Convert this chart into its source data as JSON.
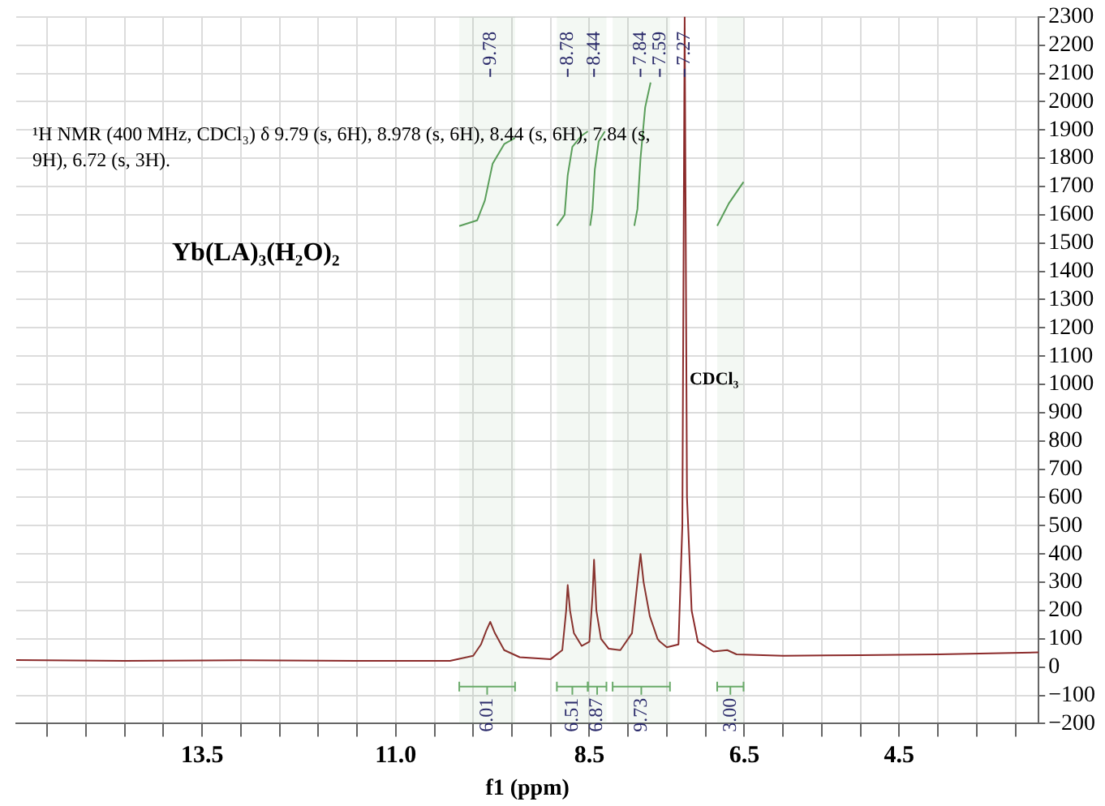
{
  "chart_data": {
    "type": "line",
    "xlabel": "f1 (ppm)",
    "xlim": [
      15.9,
      2.7
    ],
    "ylim": [
      -200,
      2300
    ],
    "xticks": [
      {
        "value": 15.5,
        "label": null
      },
      {
        "value": 15,
        "label": null
      },
      {
        "value": 14.5,
        "label": null
      },
      {
        "value": 14,
        "label": null
      },
      13.5,
      {
        "value": 13,
        "label": null
      },
      {
        "value": 12.5,
        "label": null
      },
      {
        "value": 12,
        "label": null
      },
      {
        "value": 11.5,
        "label": null
      },
      {
        "value": 11,
        "label": "11.0"
      },
      {
        "value": 10.5,
        "label": null
      },
      {
        "value": 10,
        "label": null
      },
      {
        "value": 9.5,
        "label": null
      },
      {
        "value": 9,
        "label": null
      },
      8.5,
      {
        "value": 8,
        "label": null
      },
      {
        "value": 7.5,
        "label": null
      },
      {
        "value": 7,
        "label": null
      },
      6.5,
      {
        "value": 6,
        "label": null
      },
      {
        "value": 5.5,
        "label": null
      },
      {
        "value": 5,
        "label": null
      },
      4.5,
      {
        "value": 4,
        "label": null
      },
      {
        "value": 3.5,
        "label": null
      },
      {
        "value": 3,
        "label": null
      }
    ],
    "yticks": [
      -200,
      -100,
      0,
      100,
      200,
      300,
      400,
      500,
      600,
      700,
      800,
      900,
      1000,
      1100,
      1200,
      1300,
      1400,
      1500,
      1600,
      1700,
      1800,
      1900,
      2000,
      2100,
      2200,
      2300
    ],
    "grid": true,
    "legend": false,
    "marker": "none",
    "line_style": "solid",
    "series": [
      {
        "color": "#8b2a2a",
        "x": [
          15.9,
          14.5,
          13,
          11.5,
          10.3,
          10.0,
          9.9,
          9.83,
          9.78,
          9.72,
          9.6,
          9.4,
          9.0,
          8.85,
          8.8,
          8.78,
          8.75,
          8.7,
          8.6,
          8.5,
          8.46,
          8.44,
          8.41,
          8.35,
          8.25,
          8.1,
          7.95,
          7.88,
          7.84,
          7.8,
          7.72,
          7.62,
          7.59,
          7.5,
          7.35,
          7.3,
          7.27,
          7.24,
          7.18,
          7.1,
          6.9,
          6.72,
          6.6,
          6.0,
          5.0,
          4.0,
          2.7
        ],
        "values": [
          25,
          22,
          24,
          22,
          22,
          40,
          80,
          130,
          160,
          120,
          60,
          35,
          28,
          60,
          200,
          290,
          200,
          120,
          75,
          90,
          250,
          380,
          200,
          100,
          65,
          60,
          120,
          300,
          400,
          300,
          180,
          100,
          90,
          70,
          80,
          500,
          2300,
          600,
          200,
          90,
          55,
          60,
          45,
          40,
          42,
          45,
          52
        ]
      },
      {
        "color": "#5a9e5a",
        "x": [
          10.18,
          9.95,
          9.85,
          9.75,
          9.6,
          9.46
        ],
        "values": [
          1560,
          1580,
          1650,
          1780,
          1850,
          1872
        ]
      },
      {
        "color": "#5a9e5a",
        "x": [
          8.92,
          8.82,
          8.78,
          8.72,
          8.6,
          8.52
        ],
        "values": [
          1561,
          1600,
          1740,
          1840,
          1880,
          1895
        ]
      },
      {
        "color": "#5a9e5a",
        "x": [
          8.49,
          8.46,
          8.43,
          8.38,
          8.3
        ],
        "values": [
          1561,
          1620,
          1760,
          1860,
          1895
        ]
      },
      {
        "color": "#5a9e5a",
        "x": [
          7.92,
          7.88,
          7.84,
          7.78,
          7.71
        ],
        "values": [
          1561,
          1620,
          1800,
          1980,
          2068
        ]
      },
      {
        "color": "#5a9e5a",
        "x": [
          6.85,
          6.7,
          6.51
        ],
        "values": [
          1561,
          1640,
          1716
        ]
      }
    ],
    "bands": [
      {
        "axis": "x",
        "from": 10.18,
        "to": 9.46,
        "label": "6.01",
        "color": "#6aaa6a"
      },
      {
        "axis": "x",
        "from": 8.92,
        "to": 8.52,
        "label": "6.51",
        "color": "#6aaa6a"
      },
      {
        "axis": "x",
        "from": 8.52,
        "to": 8.28,
        "label": "6.87",
        "color": "#6aaa6a"
      },
      {
        "axis": "x",
        "from": 8.2,
        "to": 7.46,
        "label": "9.73",
        "color": "#6aaa6a"
      },
      {
        "axis": "x",
        "from": 6.85,
        "to": 6.51,
        "label": "3.00",
        "color": "#6aaa6a"
      }
    ],
    "annotations": [
      "¹H NMR (400 MHz, CDCl₃) δ 9.79 (s, 6H), 8.978 (s, 6H), 8.44 (s, 6H), 7.84 (s, 9H), 6.72 (s, 3H).",
      "Yb(LA)₃(H₂O)₂",
      "CDCl₃",
      {
        "text": "9.78",
        "x": 9.78
      },
      {
        "text": "8.78",
        "x": 8.78
      },
      {
        "text": "8.44",
        "x": 8.44
      },
      {
        "text": "7.84",
        "x": 7.84
      },
      {
        "text": "7.59",
        "x": 7.59
      },
      {
        "text": "7.27",
        "x": 7.27
      }
    ]
  }
}
